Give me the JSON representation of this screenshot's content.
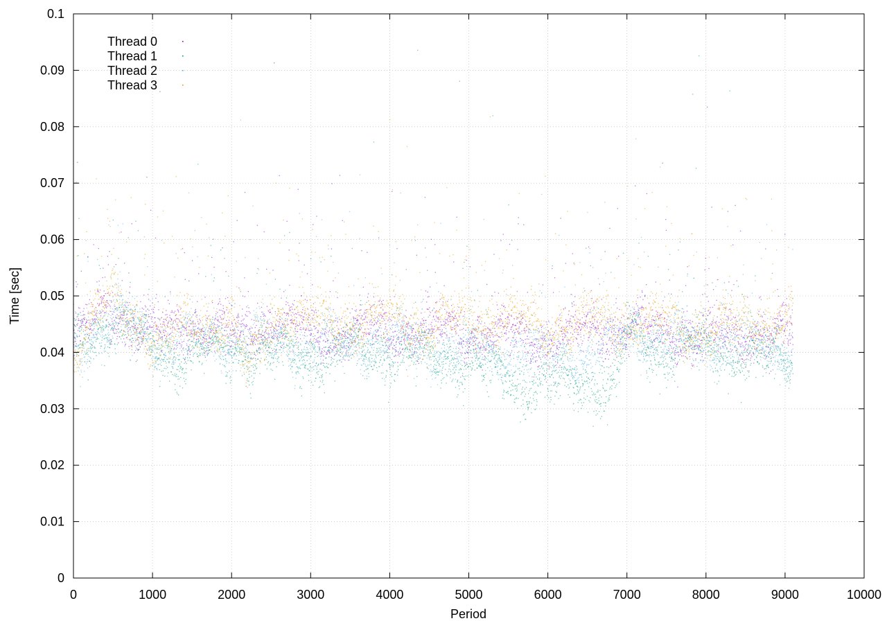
{
  "chart_data": {
    "type": "scatter",
    "title": "",
    "xlabel": "Period",
    "ylabel": "Time [sec]",
    "xlim": [
      0,
      10000
    ],
    "ylim": [
      0,
      0.1
    ],
    "xticks": [
      0,
      1000,
      2000,
      3000,
      4000,
      5000,
      6000,
      7000,
      8000,
      9000,
      10000
    ],
    "yticks": [
      0,
      0.01,
      0.02,
      0.03,
      0.04,
      0.05,
      0.06,
      0.07,
      0.08,
      0.09,
      0.1
    ],
    "xtick_labels": [
      "0",
      "1000",
      "2000",
      "3000",
      "4000",
      "5000",
      "6000",
      "7000",
      "8000",
      "9000",
      "10000"
    ],
    "ytick_labels": [
      "0",
      "0.01",
      "0.02",
      "0.03",
      "0.04",
      "0.05",
      "0.06",
      "0.07",
      "0.08",
      "0.09",
      "0.1"
    ],
    "grid": true,
    "legend_position": "top-left",
    "period_count": 9100,
    "series": [
      {
        "name": "Thread 0",
        "color": "#9400d3",
        "trend": [
          [
            0,
            0.0415
          ],
          [
            300,
            0.046
          ],
          [
            500,
            0.048
          ],
          [
            800,
            0.045
          ],
          [
            1100,
            0.043
          ],
          [
            1500,
            0.045
          ],
          [
            2000,
            0.043
          ],
          [
            2500,
            0.045
          ],
          [
            3000,
            0.0435
          ],
          [
            4000,
            0.044
          ],
          [
            5000,
            0.0435
          ],
          [
            6000,
            0.0425
          ],
          [
            7000,
            0.0445
          ],
          [
            8000,
            0.043
          ],
          [
            9100,
            0.043
          ]
        ]
      },
      {
        "name": "Thread 1",
        "color": "#009e73",
        "trend": [
          [
            0,
            0.0405
          ],
          [
            300,
            0.0435
          ],
          [
            500,
            0.046
          ],
          [
            800,
            0.043
          ],
          [
            1200,
            0.039
          ],
          [
            1600,
            0.041
          ],
          [
            2000,
            0.0405
          ],
          [
            2500,
            0.0395
          ],
          [
            3000,
            0.0395
          ],
          [
            4000,
            0.0405
          ],
          [
            5000,
            0.0385
          ],
          [
            5500,
            0.0355
          ],
          [
            6000,
            0.0345
          ],
          [
            6500,
            0.0345
          ],
          [
            6800,
            0.0335
          ],
          [
            7000,
            0.0425
          ],
          [
            7500,
            0.0405
          ],
          [
            8000,
            0.041
          ],
          [
            8500,
            0.0395
          ],
          [
            9100,
            0.0385
          ]
        ]
      },
      {
        "name": "Thread 2",
        "color": "#56b4e9",
        "trend": [
          [
            0,
            0.041
          ],
          [
            300,
            0.044
          ],
          [
            500,
            0.046
          ],
          [
            800,
            0.044
          ],
          [
            1200,
            0.0415
          ],
          [
            1600,
            0.043
          ],
          [
            2000,
            0.042
          ],
          [
            2500,
            0.042
          ],
          [
            3000,
            0.0415
          ],
          [
            4000,
            0.042
          ],
          [
            5000,
            0.0405
          ],
          [
            6000,
            0.04
          ],
          [
            6500,
            0.0395
          ],
          [
            7000,
            0.0435
          ],
          [
            8000,
            0.042
          ],
          [
            9100,
            0.041
          ]
        ]
      },
      {
        "name": "Thread 3",
        "color": "#e69f00",
        "trend": [
          [
            0,
            0.0405
          ],
          [
            300,
            0.0465
          ],
          [
            500,
            0.0495
          ],
          [
            800,
            0.046
          ],
          [
            1100,
            0.0405
          ],
          [
            1500,
            0.0455
          ],
          [
            2000,
            0.0445
          ],
          [
            2200,
            0.037
          ],
          [
            2500,
            0.0465
          ],
          [
            3000,
            0.0455
          ],
          [
            4000,
            0.046
          ],
          [
            4500,
            0.044
          ],
          [
            5000,
            0.0465
          ],
          [
            6000,
            0.0445
          ],
          [
            7000,
            0.0455
          ],
          [
            8000,
            0.044
          ],
          [
            9100,
            0.046
          ]
        ]
      }
    ]
  }
}
